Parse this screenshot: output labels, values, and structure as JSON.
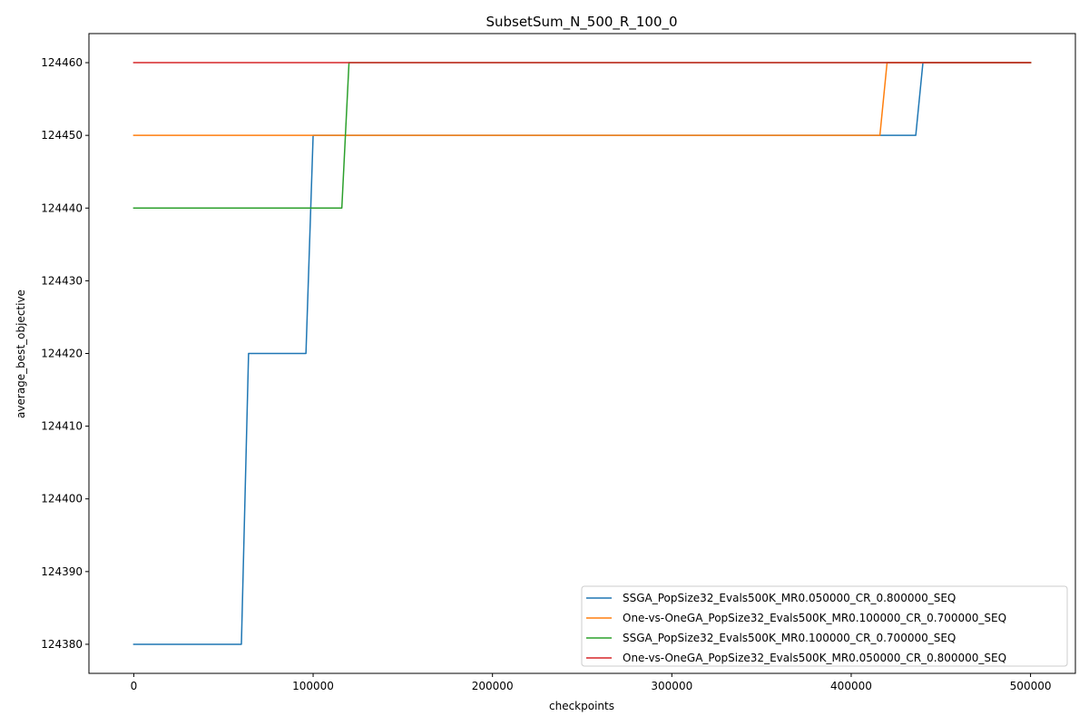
{
  "chart_data": {
    "type": "line",
    "title": "SubsetSum_N_500_R_100_0",
    "xlabel": "checkpoints",
    "ylabel": "average_best_objective",
    "xlim": [
      -25000,
      525000
    ],
    "ylim": [
      124376,
      124464
    ],
    "xticks": [
      0,
      100000,
      200000,
      300000,
      400000,
      500000
    ],
    "yticks": [
      124380,
      124390,
      124400,
      124410,
      124420,
      124430,
      124440,
      124450,
      124460
    ],
    "grid": false,
    "legend_position": "lower-right",
    "series": [
      {
        "name": "SSGA_PopSize32_Evals500K_MR0.050000_CR_0.800000_SEQ",
        "color": "#1f77b4",
        "x": [
          0,
          60000,
          64000,
          96000,
          100000,
          436000,
          440000,
          500000
        ],
        "y": [
          124380,
          124380,
          124420,
          124420,
          124450,
          124450,
          124460,
          124460
        ]
      },
      {
        "name": "One-vs-OneGA_PopSize32_Evals500K_MR0.100000_CR_0.700000_SEQ",
        "color": "#ff7f0e",
        "x": [
          0,
          416000,
          420000,
          500000
        ],
        "y": [
          124450,
          124450,
          124460,
          124460
        ]
      },
      {
        "name": "SSGA_PopSize32_Evals500K_MR0.100000_CR_0.700000_SEQ",
        "color": "#2ca02c",
        "x": [
          0,
          116000,
          120000,
          500000
        ],
        "y": [
          124440,
          124440,
          124460,
          124460
        ]
      },
      {
        "name": "One-vs-OneGA_PopSize32_Evals500K_MR0.050000_CR_0.800000_SEQ",
        "color": "#d62728",
        "x": [
          0,
          500000
        ],
        "y": [
          124460,
          124460
        ]
      }
    ]
  }
}
